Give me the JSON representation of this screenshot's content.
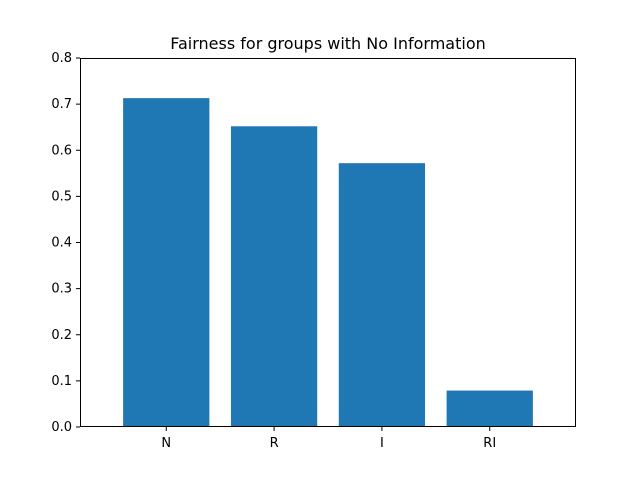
{
  "chart_data": {
    "type": "bar",
    "title": "Fairness for groups with No Information",
    "xlabel": "",
    "ylabel": "",
    "categories": [
      "N",
      "R",
      "I",
      "RI"
    ],
    "values": [
      0.713,
      0.652,
      0.572,
      0.079
    ],
    "ylim": [
      0,
      0.8
    ],
    "yticks": [
      "0.0",
      "0.1",
      "0.2",
      "0.3",
      "0.4",
      "0.5",
      "0.6",
      "0.7",
      "0.8"
    ],
    "grid": false,
    "bar_color": "#1f77b4"
  }
}
